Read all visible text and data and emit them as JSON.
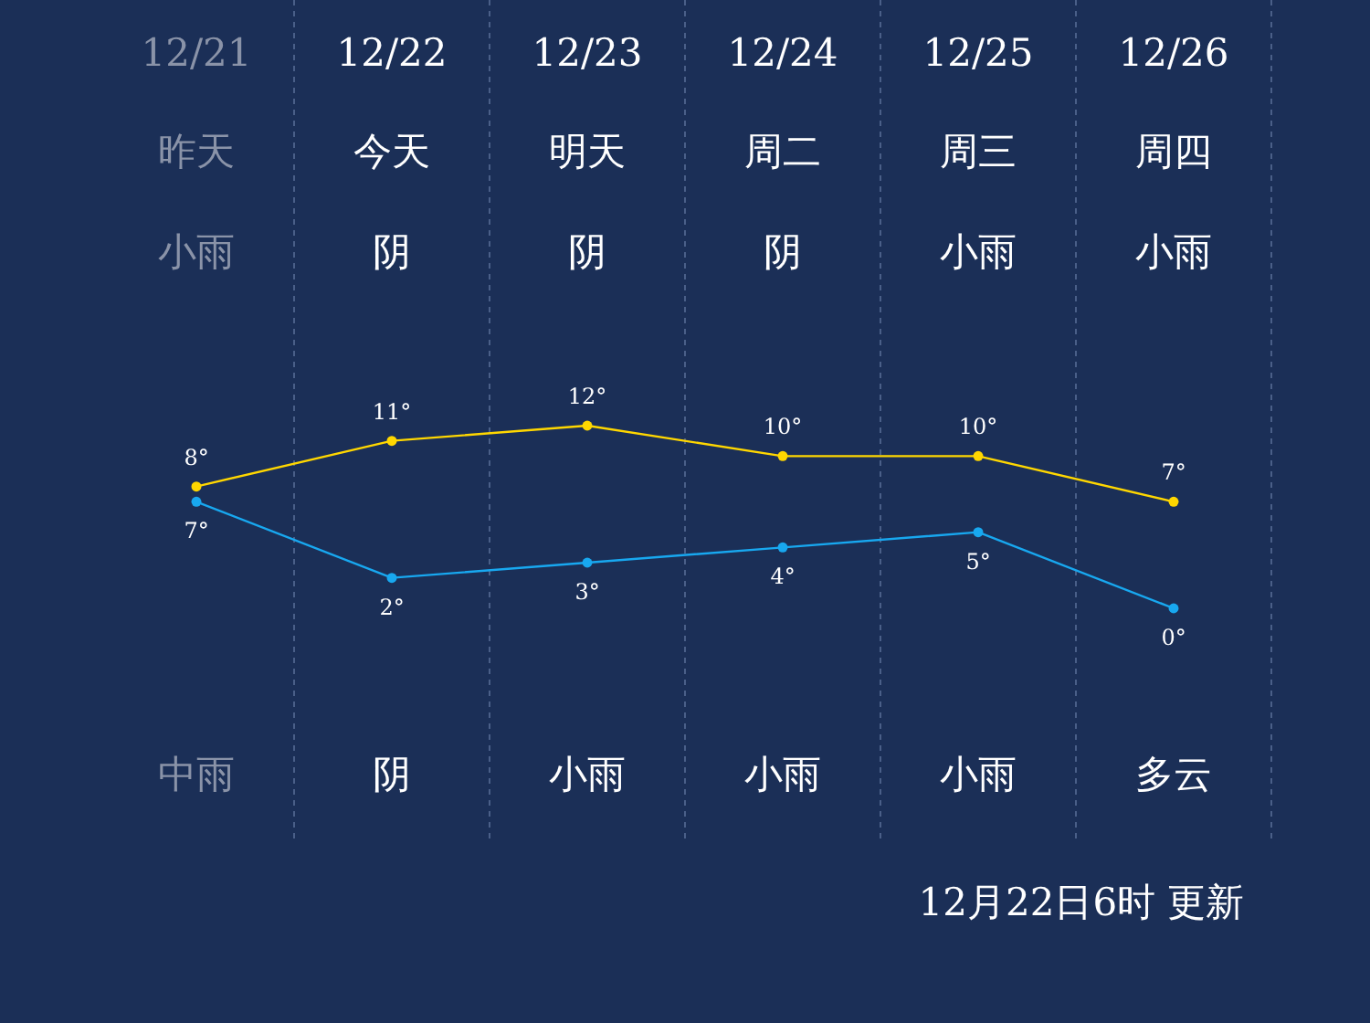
{
  "chart_data": {
    "type": "line",
    "categories": [
      "12/21",
      "12/22",
      "12/23",
      "12/24",
      "12/25",
      "12/26"
    ],
    "series": [
      {
        "color": "#ffd700",
        "values": [
          8,
          11,
          12,
          10,
          10,
          7
        ],
        "value_labels": [
          "8°",
          "11°",
          "12°",
          "10°",
          "10°",
          "7°"
        ]
      },
      {
        "color": "#18a8f0",
        "values": [
          7,
          2,
          3,
          4,
          5,
          0
        ],
        "value_labels": [
          "7°",
          "2°",
          "3°",
          "4°",
          "5°",
          "0°"
        ]
      }
    ],
    "annotations": [
      "昨天",
      "今天",
      "明天",
      "周二",
      "周三",
      "周四",
      "小雨",
      "阴",
      "阴",
      "阴",
      "小雨",
      "小雨",
      "中雨",
      "阴",
      "小雨",
      "小雨",
      "小雨",
      "多云",
      "12月22日6时 更新"
    ],
    "marker": "circle",
    "grid": "x"
  }
}
